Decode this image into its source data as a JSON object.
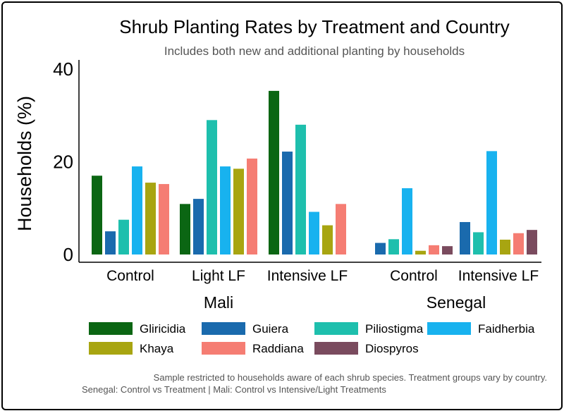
{
  "chart_data": {
    "type": "bar",
    "title": "Shrub Planting Rates by Treatment and Country",
    "subtitle": "Includes both new and additional planting by households",
    "ylabel": "Households (%)",
    "ylim": [
      0,
      40
    ],
    "yticks": [
      0,
      20,
      40
    ],
    "legend_position": "bottom",
    "series_names": [
      "Gliricidia",
      "Guiera",
      "Piliostigma",
      "Faidherbia",
      "Khaya",
      "Raddiana",
      "Diospyros"
    ],
    "colors": {
      "Gliricidia": "#0b6613",
      "Guiera": "#1a6aad",
      "Piliostigma": "#1ebfad",
      "Faidherbia": "#18b2ef",
      "Khaya": "#a8a511",
      "Raddiana": "#f57d73",
      "Diospyros": "#7a4b5e"
    },
    "countries": [
      {
        "name": "Mali",
        "groups": [
          {
            "label": "Control",
            "values": {
              "Gliricidia": 17,
              "Guiera": 5,
              "Piliostigma": 7.5,
              "Faidherbia": 19,
              "Khaya": 15.5,
              "Raddiana": 15.2
            }
          },
          {
            "label": "Light LF",
            "values": {
              "Gliricidia": 10.9,
              "Guiera": 12,
              "Piliostigma": 29,
              "Faidherbia": 19,
              "Khaya": 18.5,
              "Raddiana": 20.7
            }
          },
          {
            "label": "Intensive LF",
            "values": {
              "Gliricidia": 35.3,
              "Guiera": 22.2,
              "Piliostigma": 28,
              "Faidherbia": 9.2,
              "Khaya": 6.3,
              "Raddiana": 10.9
            }
          }
        ]
      },
      {
        "name": "Senegal",
        "groups": [
          {
            "label": "Control",
            "values": {
              "Guiera": 2.5,
              "Piliostigma": 3.3,
              "Faidherbia": 14.3,
              "Khaya": 0.8,
              "Raddiana": 2,
              "Diospyros": 1.8
            }
          },
          {
            "label": "Intensive LF",
            "values": {
              "Guiera": 7,
              "Piliostigma": 4.8,
              "Faidherbia": 22.3,
              "Khaya": 3.2,
              "Raddiana": 4.6,
              "Diospyros": 5.3
            }
          }
        ]
      }
    ]
  },
  "caption": {
    "line1": "Sample restricted to households aware of each shrub species. Treatment groups vary by country.",
    "line2": "Senegal: Control vs Treatment | Mali: Control vs Intensive/Light Treatments"
  }
}
